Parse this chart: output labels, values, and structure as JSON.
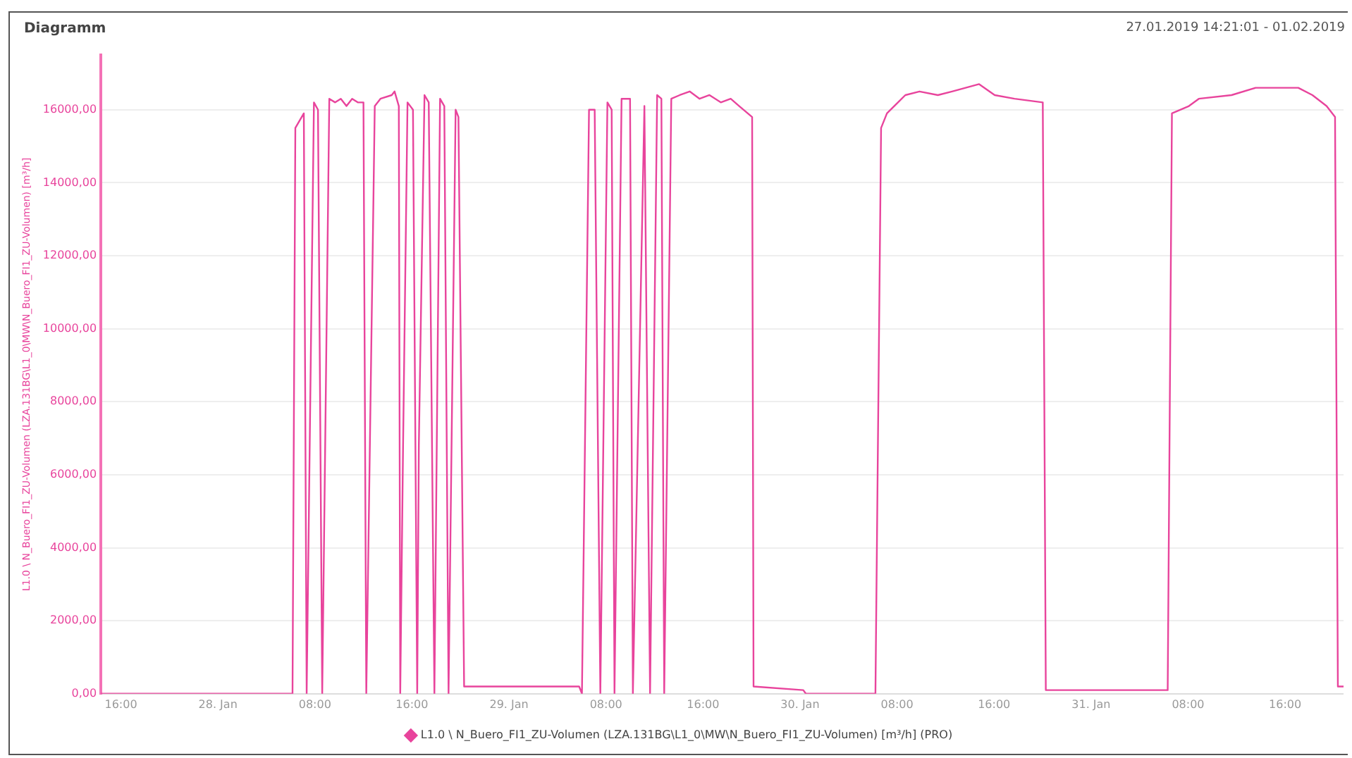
{
  "chart_data": {
    "type": "line",
    "title": "Diagramm",
    "subtitle": "27.01.2019 14:21:01 - 01.02.2019",
    "ylabel": "L1.0 \\ N_Buero_FI1_ZU-Volumen (LZA.131BG\\L1_0\\MW\\N_Buero_FI1_ZU-Volumen) [m³/h]",
    "x": [
      "2019-01-27T14:21",
      "2019-01-28T06:09",
      "2019-01-28T06:23",
      "2019-01-28T07:05",
      "2019-01-28T07:19",
      "2019-01-28T07:55",
      "2019-01-28T08:15",
      "2019-01-28T08:36",
      "2019-01-28T09:11",
      "2019-01-28T09:40",
      "2019-01-28T10:08",
      "2019-01-28T10:36",
      "2019-01-28T11:04",
      "2019-01-28T11:32",
      "2019-01-28T12:00",
      "2019-01-28T12:14",
      "2019-01-28T12:56",
      "2019-01-28T13:24",
      "2019-01-28T14:20",
      "2019-01-28T14:34",
      "2019-01-28T14:55",
      "2019-01-28T15:02",
      "2019-01-28T15:16",
      "2019-01-28T15:38",
      "2019-01-28T16:05",
      "2019-01-28T16:26",
      "2019-01-28T16:34",
      "2019-01-28T17:02",
      "2019-01-28T17:23",
      "2019-01-28T17:51",
      "2019-01-28T18:19",
      "2019-01-28T18:40",
      "2019-01-28T19:01",
      "2019-01-28T19:36",
      "2019-01-28T19:50",
      "2019-01-28T20:18",
      "2019-01-29T05:47",
      "2019-01-29T06:01",
      "2019-01-29T06:36",
      "2019-01-29T07:04",
      "2019-01-29T07:32",
      "2019-01-29T08:07",
      "2019-01-29T08:28",
      "2019-01-29T08:42",
      "2019-01-29T09:17",
      "2019-01-29T09:59",
      "2019-01-29T10:13",
      "2019-01-29T11:10",
      "2019-01-29T11:38",
      "2019-01-29T12:13",
      "2019-01-29T12:34",
      "2019-01-29T12:48",
      "2019-01-29T13:23",
      "2019-01-29T14:05",
      "2019-01-29T14:54",
      "2019-01-29T15:43",
      "2019-01-29T16:32",
      "2019-01-29T17:28",
      "2019-01-29T18:17",
      "2019-01-29T18:59",
      "2019-01-29T20:03",
      "2019-01-29T20:10",
      "2019-01-30T00:16",
      "2019-01-30T00:29",
      "2019-01-30T06:13",
      "2019-01-30T06:41",
      "2019-01-30T07:10",
      "2019-01-30T08:41",
      "2019-01-30T09:51",
      "2019-01-30T11:22",
      "2019-01-30T12:32",
      "2019-01-30T14:46",
      "2019-01-30T16:03",
      "2019-01-30T17:41",
      "2019-01-30T20:01",
      "2019-01-30T20:16",
      "2019-01-31T06:19",
      "2019-01-31T06:40",
      "2019-01-31T08:04",
      "2019-01-31T08:53",
      "2019-01-31T11:35",
      "2019-01-31T13:34",
      "2019-01-31T17:05",
      "2019-01-31T18:15",
      "2019-01-31T19:25",
      "2019-01-31T20:07",
      "2019-01-31T20:21",
      "2019-01-31T20:49"
    ],
    "series": [
      {
        "name": "L1.0 \\ N_Buero_FI1_ZU-Volumen (LZA.131BG\\L1_0\\MW\\N_Buero_FI1_ZU-Volumen) [m³/h] (PRO)",
        "color": "#e8449c",
        "values": [
          0,
          0,
          15500,
          15900,
          0,
          16200,
          16000,
          0,
          16300,
          16200,
          16300,
          16100,
          16300,
          16200,
          16200,
          0,
          16100,
          16300,
          16400,
          16500,
          16100,
          0,
          6800,
          16200,
          16000,
          0,
          6800,
          16400,
          16200,
          0,
          16300,
          16100,
          0,
          16000,
          15800,
          200,
          200,
          0,
          16000,
          16000,
          0,
          16200,
          16000,
          0,
          16300,
          16300,
          0,
          16100,
          0,
          16400,
          16300,
          0,
          16300,
          16400,
          16500,
          16300,
          16400,
          16200,
          16300,
          16100,
          15800,
          200,
          100,
          0,
          0,
          15500,
          15900,
          16400,
          16500,
          16400,
          16500,
          16700,
          16400,
          16300,
          16200,
          100,
          100,
          15900,
          16100,
          16300,
          16400,
          16600,
          16600,
          16400,
          16100,
          15800,
          200,
          200
        ]
      }
    ],
    "xlim": [
      "2019-01-27T14:21",
      "2019-01-31T20:49"
    ],
    "xticks": [
      {
        "value": "2019-01-27T16:00",
        "label": "16:00"
      },
      {
        "value": "2019-01-28T00:00",
        "label": "28. Jan"
      },
      {
        "value": "2019-01-28T08:00",
        "label": "08:00"
      },
      {
        "value": "2019-01-28T16:00",
        "label": "16:00"
      },
      {
        "value": "2019-01-29T00:00",
        "label": "29. Jan"
      },
      {
        "value": "2019-01-29T08:00",
        "label": "08:00"
      },
      {
        "value": "2019-01-29T16:00",
        "label": "16:00"
      },
      {
        "value": "2019-01-30T00:00",
        "label": "30. Jan"
      },
      {
        "value": "2019-01-30T08:00",
        "label": "08:00"
      },
      {
        "value": "2019-01-30T16:00",
        "label": "16:00"
      },
      {
        "value": "2019-01-31T00:00",
        "label": "31. Jan"
      },
      {
        "value": "2019-01-31T08:00",
        "label": "08:00"
      },
      {
        "value": "2019-01-31T16:00",
        "label": "16:00"
      }
    ],
    "ylim": [
      0,
      17500
    ],
    "yticks": [
      {
        "value": 0,
        "label": "0,00"
      },
      {
        "value": 2000,
        "label": "2000,00"
      },
      {
        "value": 4000,
        "label": "4000,00"
      },
      {
        "value": 6000,
        "label": "6000,00"
      },
      {
        "value": 8000,
        "label": "8000,00"
      },
      {
        "value": 10000,
        "label": "10000,00"
      },
      {
        "value": 12000,
        "label": "12000,00"
      },
      {
        "value": 14000,
        "label": "14000,00"
      },
      {
        "value": 16000,
        "label": "16000,00"
      }
    ],
    "grid": "y",
    "legend": "bottom",
    "marker": "none",
    "line_style": "solid"
  }
}
